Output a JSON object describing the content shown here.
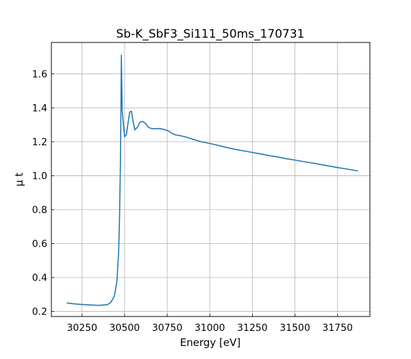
{
  "chart_data": {
    "type": "line",
    "title": "Sb-K_SbF3_Si111_50ms_170731",
    "xlabel": "Energy [eV]",
    "ylabel": "μ t",
    "xlim": [
      30070,
      31940
    ],
    "ylim": [
      0.17,
      1.785
    ],
    "xticks": [
      30250,
      30500,
      30750,
      31000,
      31250,
      31500,
      31750
    ],
    "yticks": [
      0.2,
      0.4,
      0.6,
      0.8,
      1.0,
      1.2,
      1.4,
      1.6
    ],
    "grid": true,
    "legend": "none",
    "line_color": "#1f77b4",
    "series": [
      {
        "x": [
          30160,
          30200,
          30250,
          30300,
          30350,
          30400,
          30420,
          30440,
          30455,
          30465,
          30470,
          30475,
          30478,
          30481,
          30483,
          30486,
          30489,
          30493,
          30500,
          30510,
          30520,
          30530,
          30540,
          30548,
          30560,
          30575,
          30590,
          30605,
          30620,
          30640,
          30660,
          30680,
          30700,
          30720,
          30740,
          30760,
          30780,
          30800,
          30830,
          30860,
          30900,
          30950,
          31000,
          31050,
          31100,
          31150,
          31200,
          31250,
          31300,
          31350,
          31400,
          31450,
          31500,
          31550,
          31600,
          31650,
          31700,
          31750,
          31800,
          31870
        ],
        "y": [
          0.25,
          0.245,
          0.241,
          0.238,
          0.236,
          0.24,
          0.255,
          0.29,
          0.38,
          0.55,
          0.75,
          1.05,
          1.35,
          1.71,
          1.55,
          1.38,
          1.35,
          1.3,
          1.23,
          1.24,
          1.31,
          1.375,
          1.38,
          1.33,
          1.27,
          1.285,
          1.315,
          1.32,
          1.31,
          1.285,
          1.277,
          1.277,
          1.278,
          1.275,
          1.27,
          1.262,
          1.248,
          1.24,
          1.235,
          1.228,
          1.215,
          1.2,
          1.19,
          1.178,
          1.166,
          1.155,
          1.146,
          1.137,
          1.128,
          1.118,
          1.11,
          1.1,
          1.092,
          1.083,
          1.075,
          1.066,
          1.057,
          1.048,
          1.04,
          1.028
        ]
      }
    ]
  }
}
